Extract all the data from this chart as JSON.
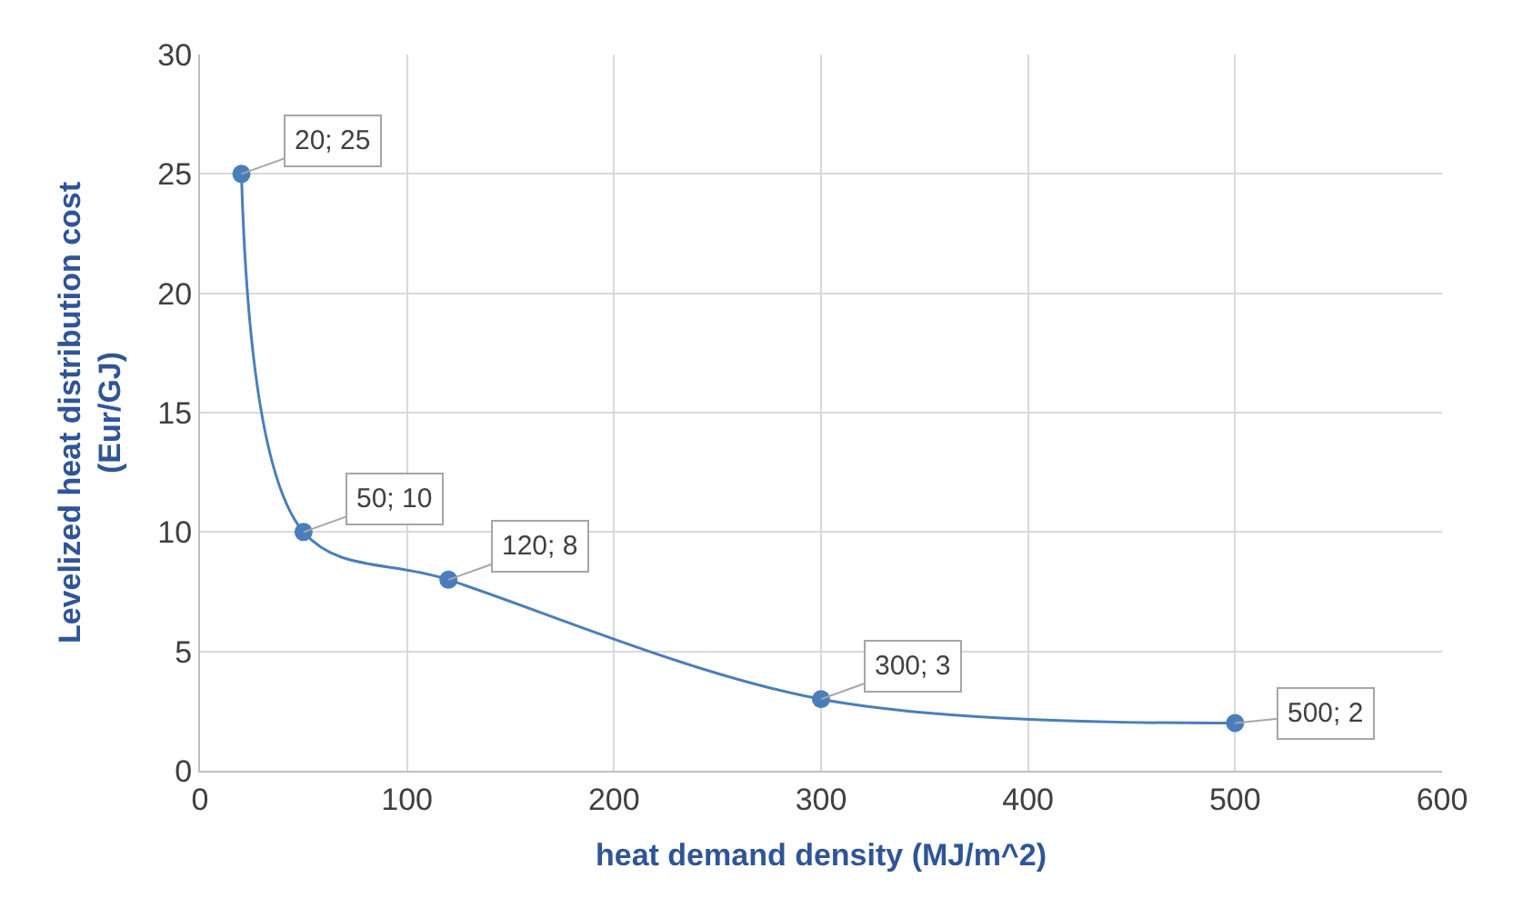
{
  "chart_data": {
    "type": "line",
    "xlabel": "heat demand density (MJ/m^2)",
    "ylabel": "Levelized heat distribution cost\n(Eur/GJ)",
    "x": [
      20,
      50,
      120,
      300,
      500
    ],
    "series": [
      {
        "color": "#4a7ebb",
        "values": [
          25,
          10,
          8,
          3,
          2
        ],
        "value_labels": [
          "20; 25",
          "50; 10",
          "120; 8",
          "300; 3",
          "500; 2"
        ]
      }
    ],
    "xlim": [
      0,
      600
    ],
    "xticks": [
      0,
      100,
      200,
      300,
      400,
      500,
      600
    ],
    "ylim": [
      0,
      30
    ],
    "yticks": [
      0,
      5,
      10,
      15,
      20,
      25,
      30
    ],
    "grid": true,
    "marker": "circle",
    "line_style": "solid"
  }
}
